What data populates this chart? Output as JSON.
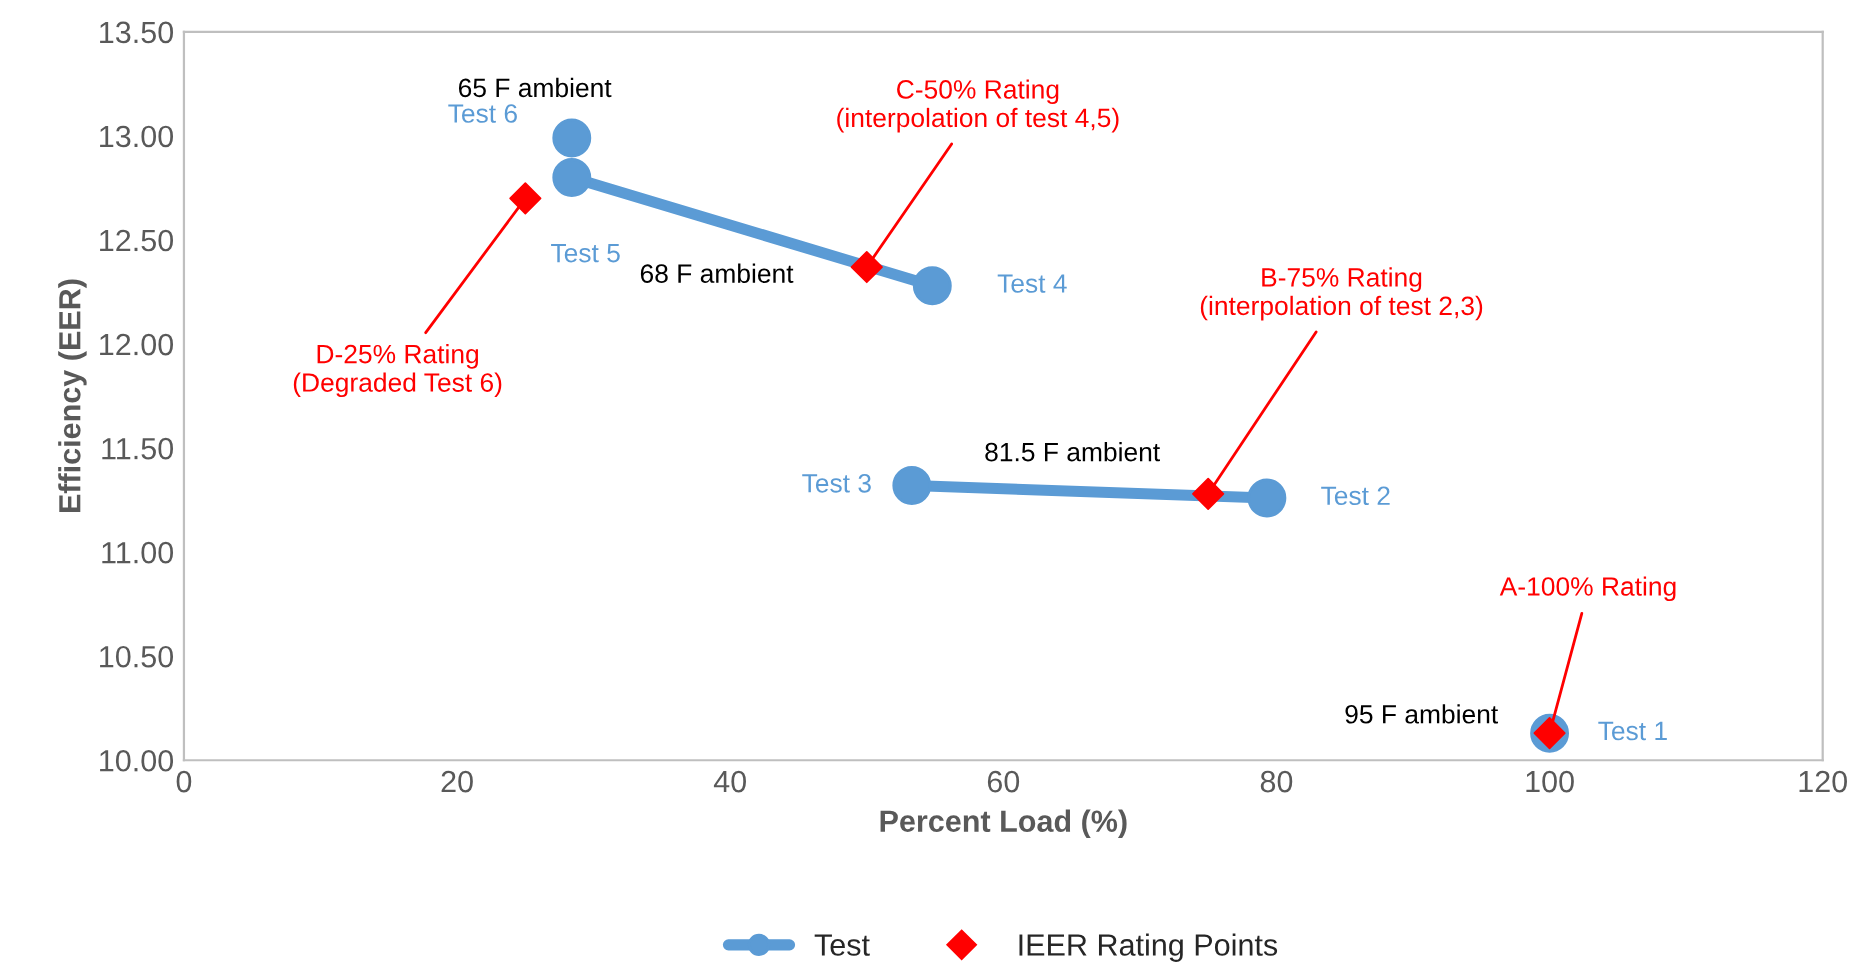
{
  "chart_data": {
    "type": "line",
    "xlabel": "Percent Load (%)",
    "ylabel": "Efficiency (EER)",
    "xlim": [
      0,
      120
    ],
    "xticks": [
      0,
      20,
      40,
      60,
      80,
      100,
      120
    ],
    "ylim": [
      10.0,
      13.5
    ],
    "yticks": [
      {
        "value": 10.0,
        "label": "10.00"
      },
      {
        "value": 10.5,
        "label": "10.50"
      },
      {
        "value": 11.0,
        "label": "11.00"
      },
      {
        "value": 11.5,
        "label": "11.50"
      },
      {
        "value": 12.0,
        "label": "12.00"
      },
      {
        "value": 12.5,
        "label": "12.50"
      },
      {
        "value": 13.0,
        "label": "13.00"
      },
      {
        "value": 13.5,
        "label": "13.50"
      }
    ],
    "grid": false,
    "legend": "bottom",
    "series": [
      {
        "name": "Test",
        "marker": "circle",
        "color": "#5b9bd5",
        "x": [
          100,
          null,
          79.3,
          53.3,
          null,
          54.8,
          28.4,
          null,
          28.4
        ],
        "values": [
          10.13,
          null,
          11.26,
          11.32,
          null,
          12.28,
          12.8,
          null,
          12.99
        ],
        "value_labels": [
          "Test 1",
          null,
          "Test 2",
          "Test 3",
          null,
          "Test 4",
          "Test 5",
          null,
          "Test 6"
        ]
      },
      {
        "name": "IEER Rating Points",
        "type": "scatter",
        "marker": "diamond",
        "color": "#ff0000",
        "x": [
          100,
          75,
          50,
          25
        ],
        "values": [
          10.13,
          11.28,
          12.37,
          12.7
        ],
        "value_labels": [
          "A-100% Rating",
          "B-75% Rating\n(interpolation of test 2,3)",
          "C-50% Rating\n(interpolation of test 4,5)",
          "D-25% Rating\n(Degraded Test 6)"
        ]
      }
    ],
    "annotations": [
      "65 F ambient",
      "68 F ambient",
      "81.5 F ambient",
      "95 F ambient"
    ]
  }
}
